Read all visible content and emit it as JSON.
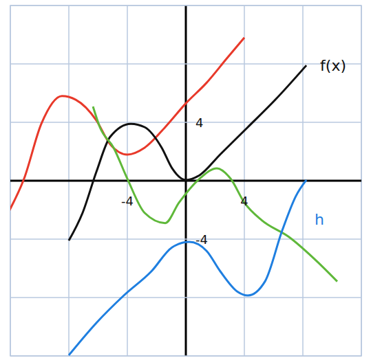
{
  "chart_data": {
    "type": "line",
    "xlim": [
      -12,
      12
    ],
    "ylim": [
      -12,
      12
    ],
    "xticks": [
      -4,
      4
    ],
    "yticks": [
      -4,
      4
    ],
    "grid": true,
    "series": [
      {
        "color": "#e8392a",
        "x": [
          -12.15,
          -11.06,
          -9.88,
          -8.47,
          -7.53,
          -6.12,
          -5.18,
          -4,
          -2.82,
          -1.41,
          0,
          1.41,
          2.82,
          4
        ],
        "values": [
          -2.2,
          0.14,
          3.9,
          5.8,
          5.55,
          4.14,
          2.5,
          1.79,
          2.26,
          3.67,
          5.3,
          6.7,
          8.4,
          9.8
        ]
      },
      {
        "name": "f(x)",
        "color": "#111111",
        "x": [
          -8,
          -7.06,
          -6.12,
          -5.18,
          -3.76,
          -2.82,
          -1.65,
          -0.94,
          0,
          0.94,
          2.35,
          4.24,
          6.12,
          8.24
        ],
        "values": [
          -4.1,
          -2.2,
          0.6,
          3,
          3.9,
          3.67,
          2.26,
          0.85,
          0.05,
          0.38,
          1.8,
          3.67,
          5.55,
          7.9
        ]
      },
      {
        "color": "#5fb83a",
        "x": [
          -6.35,
          -5.88,
          -4.94,
          -4,
          -2.82,
          -1.41,
          -0.47,
          0.94,
          2.12,
          3.06,
          4,
          5.18,
          7.06,
          8.94,
          10.35
        ],
        "values": [
          5.08,
          3.67,
          2.26,
          0.14,
          -2.2,
          -2.9,
          -1.5,
          0.14,
          0.85,
          0.14,
          -1.5,
          -2.7,
          -3.86,
          -5.5,
          -6.9
        ]
      },
      {
        "name": "h",
        "color": "#1f7fe0",
        "x": [
          -8,
          -6.12,
          -4.24,
          -2.35,
          -0.94,
          0.24,
          1.41,
          2.35,
          3.53,
          4.24,
          5.41,
          6.59,
          7.53,
          8.24
        ],
        "values": [
          -11.95,
          -9.74,
          -7.86,
          -6.2,
          -4.56,
          -4.19,
          -4.8,
          -6.2,
          -7.6,
          -7.86,
          -6.9,
          -3.4,
          -1.04,
          0.05
        ]
      }
    ]
  }
}
